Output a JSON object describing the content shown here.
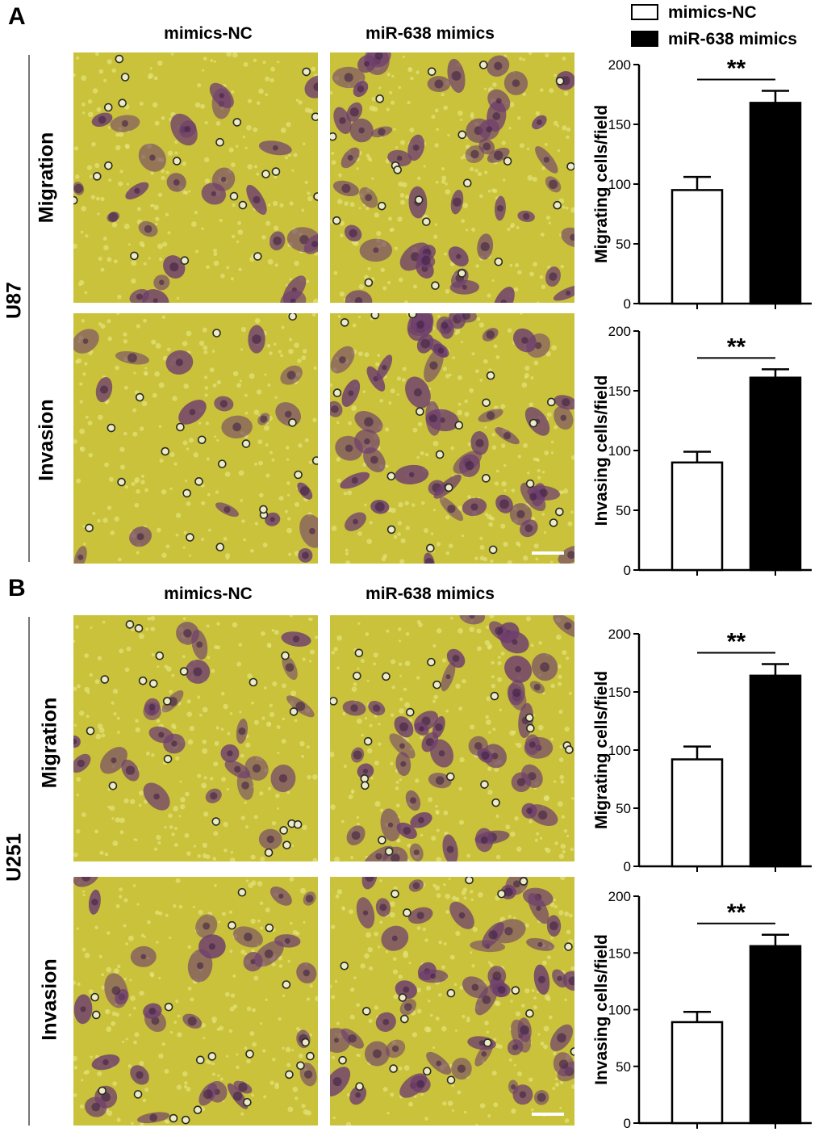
{
  "panels": [
    {
      "letter": "A",
      "cell_line": "U87"
    },
    {
      "letter": "B",
      "cell_line": "U251"
    }
  ],
  "column_titles": {
    "control": "mimics-NC",
    "treatment": "miR-638 mimics"
  },
  "row_labels": {
    "migration": "Migration",
    "invasion": "Invasion"
  },
  "legend": [
    {
      "label": "mimics-NC",
      "fill": "#ffffff"
    },
    {
      "label": "miR-638 mimics",
      "fill": "#000000"
    }
  ],
  "colors": {
    "micro_background": "#c9c23a",
    "cell_stain": "#6e3e6e",
    "bar_control": "#ffffff",
    "bar_treatment": "#000000"
  },
  "chart_data": [
    {
      "type": "bar",
      "panel": "A",
      "categories": [
        "mimics-NC",
        "miR-638 mimics"
      ],
      "values": [
        95,
        168
      ],
      "errors": [
        11,
        10
      ],
      "ylabel": "Migrating cells/field",
      "ylim": [
        0,
        200
      ],
      "yticks": [
        "0",
        "50",
        "100",
        "150",
        "200"
      ],
      "significance": "**"
    },
    {
      "type": "bar",
      "panel": "A",
      "categories": [
        "mimics-NC",
        "miR-638 mimics"
      ],
      "values": [
        90,
        161
      ],
      "errors": [
        9,
        7
      ],
      "ylabel": "Invasing cells/field",
      "ylim": [
        0,
        200
      ],
      "yticks": [
        "0",
        "50",
        "100",
        "150",
        "200"
      ],
      "significance": "**"
    },
    {
      "type": "bar",
      "panel": "B",
      "categories": [
        "mimics-NC",
        "miR-638 mimics"
      ],
      "values": [
        92,
        164
      ],
      "errors": [
        11,
        10
      ],
      "ylabel": "Migrating cells/field",
      "ylim": [
        0,
        200
      ],
      "yticks": [
        "0",
        "50",
        "100",
        "150",
        "200"
      ],
      "significance": "**"
    },
    {
      "type": "bar",
      "panel": "B",
      "categories": [
        "mimics-NC",
        "miR-638 mimics"
      ],
      "values": [
        89,
        156
      ],
      "errors": [
        9,
        10
      ],
      "ylabel": "Invasing cells/field",
      "ylim": [
        0,
        200
      ],
      "yticks": [
        "0",
        "50",
        "100",
        "150",
        "200"
      ],
      "significance": "**"
    }
  ]
}
